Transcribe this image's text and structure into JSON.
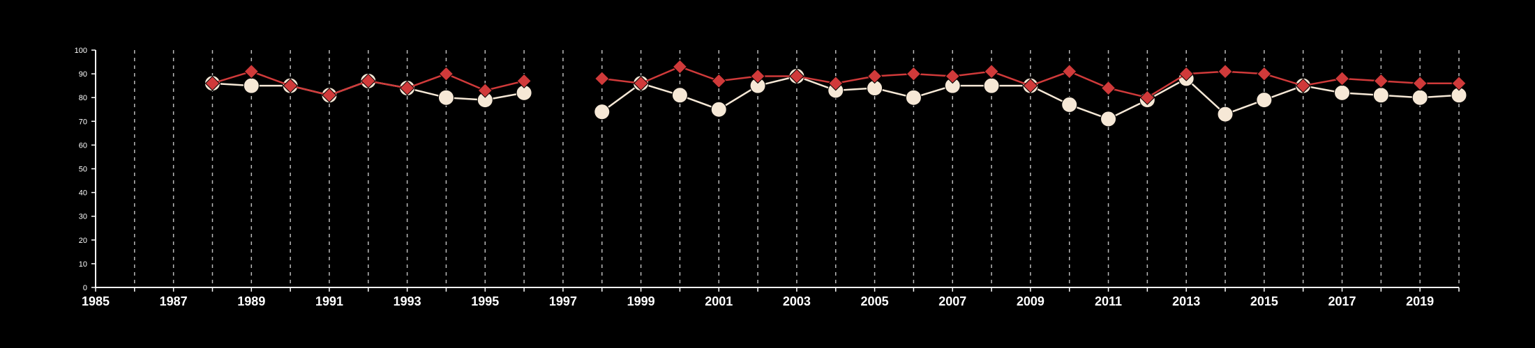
{
  "chart_data": {
    "type": "line",
    "title": "",
    "xlabel": "",
    "ylabel": "",
    "xlim": [
      1985,
      2020
    ],
    "ylim": [
      0,
      100
    ],
    "y_ticks": [
      0,
      10,
      20,
      30,
      40,
      50,
      60,
      70,
      80,
      90,
      100
    ],
    "x_ticks": [
      1985,
      1987,
      1989,
      1991,
      1993,
      1995,
      1997,
      1999,
      2001,
      2003,
      2005,
      2007,
      2009,
      2011,
      2013,
      2015,
      2017,
      2019
    ],
    "vertical_gridlines_every_year": true,
    "colors": {
      "background": "#000000",
      "axis": "#ffffff",
      "grid": "#bbbbbb",
      "series_red": "#d03a3a",
      "series_cream": "#f6e8d6"
    },
    "series": [
      {
        "marker": "circle",
        "color": "#f6e8d6",
        "points": [
          [
            1988,
            86
          ],
          [
            1989,
            85
          ],
          [
            1990,
            85
          ],
          [
            1991,
            81
          ],
          [
            1992,
            87
          ],
          [
            1993,
            84
          ],
          [
            1994,
            80
          ],
          [
            1995,
            79
          ],
          [
            1996,
            82
          ],
          [
            1998,
            74
          ],
          [
            1999,
            86
          ],
          [
            2000,
            81
          ],
          [
            2001,
            75
          ],
          [
            2002,
            85
          ],
          [
            2003,
            89
          ],
          [
            2004,
            83
          ],
          [
            2005,
            84
          ],
          [
            2006,
            80
          ],
          [
            2007,
            85
          ],
          [
            2008,
            85
          ],
          [
            2009,
            85
          ],
          [
            2010,
            77
          ],
          [
            2011,
            71
          ],
          [
            2012,
            79
          ],
          [
            2013,
            88
          ],
          [
            2014,
            73
          ],
          [
            2015,
            79
          ],
          [
            2016,
            85
          ],
          [
            2017,
            82
          ],
          [
            2018,
            81
          ],
          [
            2019,
            80
          ],
          [
            2020,
            81
          ]
        ]
      },
      {
        "marker": "diamond",
        "color": "#d03a3a",
        "points": [
          [
            1988,
            86
          ],
          [
            1989,
            91
          ],
          [
            1990,
            85
          ],
          [
            1991,
            81
          ],
          [
            1992,
            87
          ],
          [
            1993,
            84
          ],
          [
            1994,
            90
          ],
          [
            1995,
            83
          ],
          [
            1996,
            87
          ],
          [
            1998,
            88
          ],
          [
            1999,
            86
          ],
          [
            2000,
            93
          ],
          [
            2001,
            87
          ],
          [
            2002,
            89
          ],
          [
            2003,
            89
          ],
          [
            2004,
            86
          ],
          [
            2005,
            89
          ],
          [
            2006,
            90
          ],
          [
            2007,
            89
          ],
          [
            2008,
            91
          ],
          [
            2009,
            85
          ],
          [
            2010,
            91
          ],
          [
            2011,
            84
          ],
          [
            2012,
            80
          ],
          [
            2013,
            90
          ],
          [
            2014,
            91
          ],
          [
            2015,
            90
          ],
          [
            2016,
            85
          ],
          [
            2017,
            88
          ],
          [
            2018,
            87
          ],
          [
            2019,
            86
          ],
          [
            2020,
            86
          ]
        ]
      }
    ]
  }
}
